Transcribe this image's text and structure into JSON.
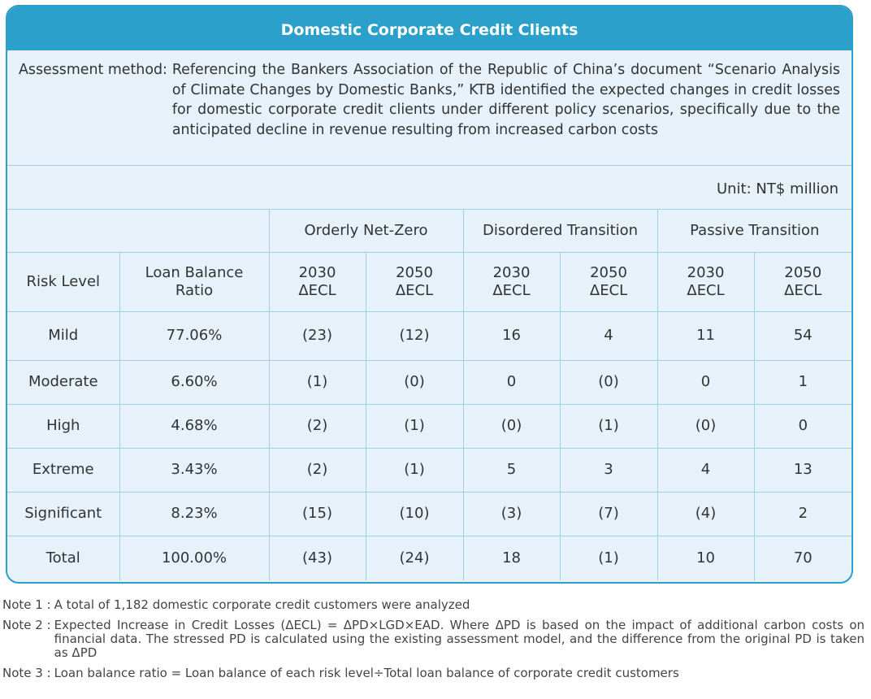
{
  "card": {
    "title": "Domestic Corporate Credit Clients",
    "method_label": "Assessment method:",
    "method_text": "Referencing the Bankers Association of the Republic of China’s document “Scenario Analysis of Climate Changes by Domestic Banks,” KTB identified the expected changes in credit losses for domestic corporate credit clients under different policy scenarios, specifically due to the anticipated decline in revenue resulting from increased carbon costs",
    "unit": "Unit: NT$ million"
  },
  "table": {
    "scenarios": [
      "Orderly Net-Zero",
      "Disordered Transition",
      "Passive Transition"
    ],
    "headers": {
      "risk_level": "Risk Level",
      "loan_balance_ratio": "Loan Balance Ratio",
      "subcols": [
        "2030 ΔECL",
        "2050 ΔECL",
        "2030 ΔECL",
        "2050 ΔECL",
        "2030 ΔECL",
        "2050 ΔECL"
      ]
    },
    "rows": [
      {
        "level": "Mild",
        "ratio": "77.06%",
        "values": [
          "(23)",
          "(12)",
          "16",
          "4",
          "11",
          "54"
        ]
      },
      {
        "level": "Moderate",
        "ratio": "6.60%",
        "values": [
          "(1)",
          "(0)",
          "0",
          "(0)",
          "0",
          "1"
        ]
      },
      {
        "level": "High",
        "ratio": "4.68%",
        "values": [
          "(2)",
          "(1)",
          "(0)",
          "(1)",
          "(0)",
          "0"
        ]
      },
      {
        "level": "Extreme",
        "ratio": "3.43%",
        "values": [
          "(2)",
          "(1)",
          "5",
          "3",
          "4",
          "13"
        ]
      },
      {
        "level": "Significant",
        "ratio": "8.23%",
        "values": [
          "(15)",
          "(10)",
          "(3)",
          "(7)",
          "(4)",
          "2"
        ]
      },
      {
        "level": "Total",
        "ratio": "100.00%",
        "values": [
          "(43)",
          "(24)",
          "18",
          "(1)",
          "10",
          "70"
        ]
      }
    ]
  },
  "notes": [
    {
      "label": "Note 1 :",
      "text": "A total of 1,182 domestic corporate credit customers were analyzed"
    },
    {
      "label": "Note 2 :",
      "text": "Expected Increase in Credit Losses (ΔECL) = ΔPD×LGD×EAD. Where ΔPD is based on the impact of additional carbon costs on financial data. The stressed PD is calculated using the existing assessment model, and the difference from the original PD is taken as ΔPD"
    },
    {
      "label": "Note 3 :",
      "text": "Loan balance ratio = Loan balance of each risk level÷Total loan balance of corporate credit customers"
    }
  ]
}
